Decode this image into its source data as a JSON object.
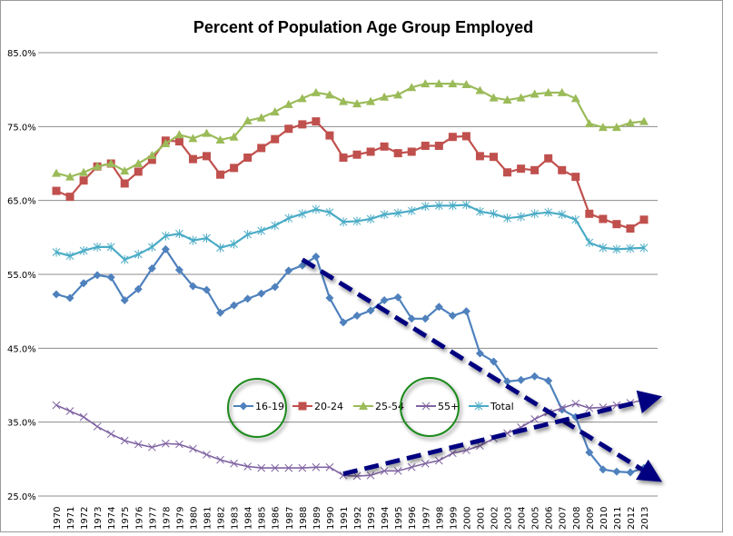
{
  "chart_data": {
    "type": "line",
    "title": "Percent of Population Age Group Employed",
    "xlabel": "",
    "ylabel": "",
    "ylim": [
      25,
      85
    ],
    "yticks": [
      "25.0%",
      "35.0%",
      "45.0%",
      "55.0%",
      "65.0%",
      "75.0%",
      "85.0%"
    ],
    "grid": true,
    "legend_placement": "inside-bottom-center",
    "x": [
      1970,
      1971,
      1972,
      1973,
      1974,
      1975,
      1976,
      1977,
      1978,
      1979,
      1980,
      1981,
      1982,
      1983,
      1984,
      1985,
      1986,
      1987,
      1988,
      1989,
      1990,
      1991,
      1992,
      1993,
      1994,
      1995,
      1996,
      1997,
      1998,
      1999,
      2000,
      2001,
      2002,
      2003,
      2004,
      2005,
      2006,
      2007,
      2008,
      2009,
      2010,
      2011,
      2012,
      2013
    ],
    "series": [
      {
        "name": "16-19",
        "color": "#4f81bd",
        "marker": "diamond",
        "values": [
          52.3,
          51.8,
          53.8,
          54.9,
          54.6,
          51.5,
          53.0,
          55.8,
          58.4,
          55.6,
          53.4,
          52.9,
          49.8,
          50.8,
          51.7,
          52.4,
          53.3,
          55.5,
          56.2,
          57.4,
          51.8,
          48.5,
          49.4,
          50.1,
          51.5,
          51.9,
          49.0,
          49.0,
          50.6,
          49.4,
          50.0,
          44.3,
          43.2,
          40.5,
          40.7,
          41.2,
          40.6,
          36.7,
          35.7,
          30.9,
          28.6,
          28.3,
          28.2,
          28.8
        ]
      },
      {
        "name": "20-24",
        "color": "#c0504d",
        "marker": "square",
        "values": [
          66.3,
          65.5,
          67.7,
          69.6,
          70.0,
          67.3,
          68.9,
          70.5,
          73.1,
          73.0,
          70.6,
          71.0,
          68.5,
          69.4,
          70.8,
          72.1,
          73.3,
          74.7,
          75.3,
          75.7,
          73.8,
          70.8,
          71.2,
          71.6,
          72.3,
          71.4,
          71.6,
          72.4,
          72.4,
          73.6,
          73.7,
          71.0,
          70.9,
          68.8,
          69.3,
          69.1,
          70.7,
          69.1,
          68.2,
          63.2,
          62.5,
          61.8,
          61.2,
          62.4
        ]
      },
      {
        "name": "25-54",
        "color": "#9bbb59",
        "marker": "triangle",
        "values": [
          68.7,
          68.2,
          68.8,
          69.6,
          70.0,
          69.0,
          70.0,
          71.1,
          72.7,
          73.9,
          73.4,
          74.1,
          73.2,
          73.6,
          75.8,
          76.2,
          77.0,
          78.0,
          78.8,
          79.6,
          79.3,
          78.4,
          78.1,
          78.4,
          79.0,
          79.3,
          80.3,
          80.8,
          80.8,
          80.8,
          80.7,
          79.9,
          78.9,
          78.6,
          78.9,
          79.4,
          79.6,
          79.6,
          78.8,
          75.4,
          74.9,
          74.9,
          75.5,
          75.7
        ]
      },
      {
        "name": "55+",
        "color": "#8064a2",
        "marker": "x",
        "values": [
          37.3,
          36.5,
          35.7,
          34.4,
          33.4,
          32.5,
          32.0,
          31.6,
          32.1,
          32.0,
          31.4,
          30.6,
          29.9,
          29.4,
          29.0,
          28.8,
          28.8,
          28.8,
          28.8,
          28.9,
          28.9,
          27.8,
          27.7,
          27.8,
          28.4,
          28.4,
          28.9,
          29.4,
          29.8,
          30.8,
          31.2,
          31.8,
          32.8,
          33.5,
          34.3,
          35.4,
          36.3,
          36.9,
          37.5,
          36.9,
          37.0,
          37.3,
          37.6,
          38.0
        ]
      },
      {
        "name": "Total",
        "color": "#4bacc6",
        "marker": "star",
        "values": [
          58.0,
          57.5,
          58.2,
          58.7,
          58.7,
          57.0,
          57.7,
          58.7,
          60.2,
          60.5,
          59.6,
          59.9,
          58.6,
          59.1,
          60.4,
          60.9,
          61.6,
          62.6,
          63.2,
          63.8,
          63.4,
          62.1,
          62.2,
          62.5,
          63.1,
          63.3,
          63.6,
          64.2,
          64.3,
          64.3,
          64.4,
          63.5,
          63.2,
          62.6,
          62.8,
          63.2,
          63.4,
          63.1,
          62.4,
          59.3,
          58.6,
          58.4,
          58.5,
          58.6
        ]
      }
    ],
    "annotations": {
      "circled_legend_entries": [
        "16-19",
        "55+"
      ],
      "circle_color": "#1a8a1a",
      "trend_arrow_color": "#000080",
      "trend_arrows": [
        {
          "from": [
            1988,
            57.0
          ],
          "to": [
            2013,
            26.9
          ],
          "direction": "down"
        },
        {
          "from": [
            1991,
            28.0
          ],
          "to": [
            2013,
            38.5
          ],
          "direction": "up"
        }
      ]
    }
  }
}
